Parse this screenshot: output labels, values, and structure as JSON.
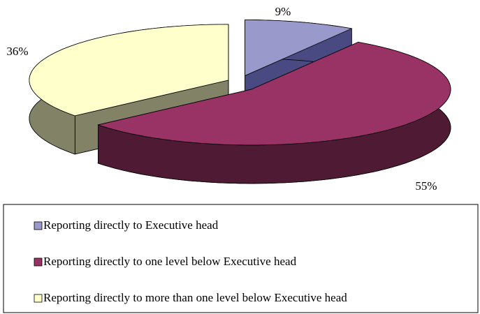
{
  "chart_data": {
    "type": "pie3d",
    "categories": [
      "Reporting directly to Executive head",
      "Reporting directly to one level below Executive head",
      "Reporting directly to more than one level below Executive head"
    ],
    "values": [
      9,
      55,
      36
    ],
    "value_labels": [
      "9%",
      "55%",
      "36%"
    ],
    "colors": [
      "#9999cc",
      "#993366",
      "#ffffcc"
    ],
    "side_colors": [
      "#4a4a82",
      "#4f1a33",
      "#828266"
    ]
  }
}
